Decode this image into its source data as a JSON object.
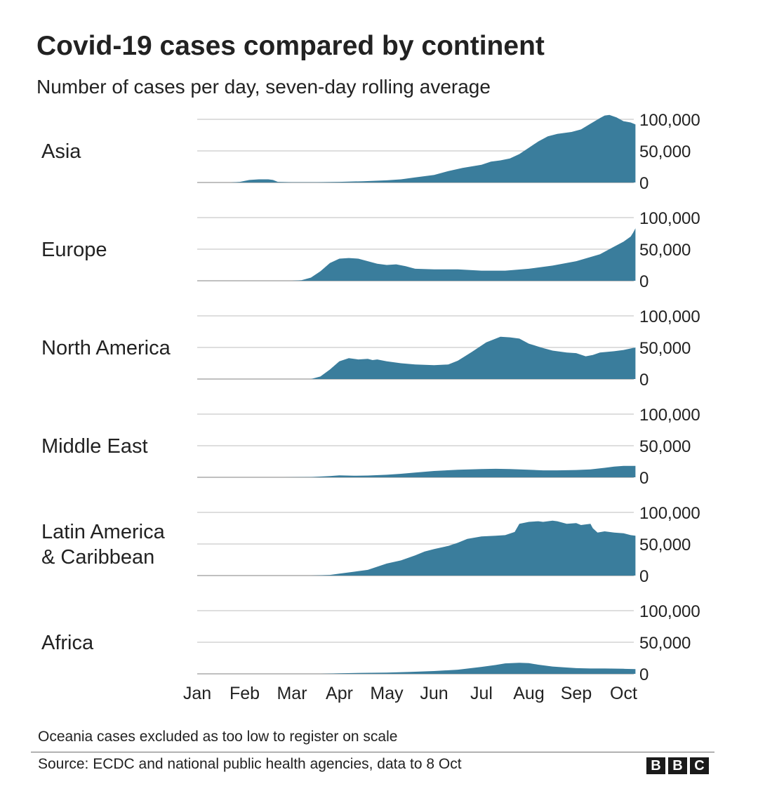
{
  "chart_data": {
    "type": "area",
    "title": "Covid-19 cases compared by continent",
    "subtitle": "Number of cases per day, seven-day rolling average",
    "x_tick_labels": [
      "Jan",
      "Feb",
      "Mar",
      "Apr",
      "May",
      "Jun",
      "Jul",
      "Aug",
      "Sep",
      "Oct"
    ],
    "y_ticks": [
      0,
      50000,
      100000
    ],
    "y_tick_labels": [
      "0",
      "50,000",
      "100,000"
    ],
    "ylim": [
      0,
      100000
    ],
    "y_axis_side": "right",
    "grid": true,
    "fill_color": "#3a7d9c",
    "series": [
      {
        "name": "Asia",
        "points": [
          [
            0.7,
            0
          ],
          [
            0.9,
            1000
          ],
          [
            1.0,
            2500
          ],
          [
            1.1,
            4000
          ],
          [
            1.3,
            5000
          ],
          [
            1.5,
            5000
          ],
          [
            1.6,
            4000
          ],
          [
            1.7,
            1000
          ],
          [
            2.0,
            500
          ],
          [
            2.5,
            500
          ],
          [
            3.0,
            1000
          ],
          [
            3.5,
            2000
          ],
          [
            4.0,
            3500
          ],
          [
            4.3,
            5000
          ],
          [
            4.6,
            8000
          ],
          [
            5.0,
            12000
          ],
          [
            5.3,
            18000
          ],
          [
            5.6,
            23000
          ],
          [
            6.0,
            28000
          ],
          [
            6.2,
            33000
          ],
          [
            6.4,
            35000
          ],
          [
            6.6,
            38000
          ],
          [
            6.8,
            45000
          ],
          [
            7.0,
            55000
          ],
          [
            7.2,
            65000
          ],
          [
            7.4,
            73000
          ],
          [
            7.6,
            77000
          ],
          [
            7.9,
            80000
          ],
          [
            8.1,
            84000
          ],
          [
            8.3,
            93000
          ],
          [
            8.5,
            102000
          ],
          [
            8.6,
            106000
          ],
          [
            8.7,
            107000
          ],
          [
            8.85,
            103000
          ],
          [
            9.0,
            97000
          ],
          [
            9.15,
            95000
          ],
          [
            9.25,
            92000
          ]
        ]
      },
      {
        "name": "Europe",
        "points": [
          [
            2.0,
            0
          ],
          [
            2.2,
            800
          ],
          [
            2.4,
            5000
          ],
          [
            2.6,
            15000
          ],
          [
            2.8,
            28000
          ],
          [
            3.0,
            35000
          ],
          [
            3.2,
            36000
          ],
          [
            3.4,
            35000
          ],
          [
            3.6,
            31000
          ],
          [
            3.8,
            27000
          ],
          [
            4.0,
            25000
          ],
          [
            4.2,
            26000
          ],
          [
            4.4,
            23000
          ],
          [
            4.6,
            19000
          ],
          [
            5.0,
            18000
          ],
          [
            5.5,
            18000
          ],
          [
            6.0,
            16000
          ],
          [
            6.5,
            16000
          ],
          [
            7.0,
            19000
          ],
          [
            7.5,
            24000
          ],
          [
            8.0,
            31000
          ],
          [
            8.5,
            42000
          ],
          [
            8.8,
            54000
          ],
          [
            9.0,
            62000
          ],
          [
            9.15,
            70000
          ],
          [
            9.2,
            76000
          ],
          [
            9.25,
            83000
          ]
        ]
      },
      {
        "name": "North America",
        "points": [
          [
            2.4,
            0
          ],
          [
            2.6,
            4000
          ],
          [
            2.8,
            15000
          ],
          [
            3.0,
            28000
          ],
          [
            3.2,
            33000
          ],
          [
            3.4,
            31000
          ],
          [
            3.6,
            32000
          ],
          [
            3.7,
            30000
          ],
          [
            3.8,
            31000
          ],
          [
            4.0,
            28000
          ],
          [
            4.3,
            25000
          ],
          [
            4.6,
            23000
          ],
          [
            5.0,
            22000
          ],
          [
            5.3,
            23000
          ],
          [
            5.5,
            29000
          ],
          [
            5.8,
            43000
          ],
          [
            6.1,
            58000
          ],
          [
            6.4,
            67000
          ],
          [
            6.6,
            66000
          ],
          [
            6.8,
            64000
          ],
          [
            7.0,
            56000
          ],
          [
            7.3,
            49000
          ],
          [
            7.5,
            45000
          ],
          [
            7.8,
            42000
          ],
          [
            8.0,
            41000
          ],
          [
            8.2,
            36000
          ],
          [
            8.35,
            38000
          ],
          [
            8.5,
            42000
          ],
          [
            8.8,
            44000
          ],
          [
            9.0,
            46000
          ],
          [
            9.25,
            50000
          ]
        ]
      },
      {
        "name": "Middle East",
        "points": [
          [
            1.8,
            0
          ],
          [
            2.4,
            400
          ],
          [
            2.8,
            2000
          ],
          [
            3.0,
            3000
          ],
          [
            3.3,
            2500
          ],
          [
            3.6,
            2800
          ],
          [
            4.0,
            4000
          ],
          [
            4.3,
            5500
          ],
          [
            4.6,
            7500
          ],
          [
            5.0,
            10000
          ],
          [
            5.5,
            12000
          ],
          [
            6.0,
            13000
          ],
          [
            6.3,
            13500
          ],
          [
            6.6,
            13000
          ],
          [
            7.0,
            12000
          ],
          [
            7.3,
            11000
          ],
          [
            7.6,
            11000
          ],
          [
            8.0,
            11500
          ],
          [
            8.3,
            12500
          ],
          [
            8.6,
            15000
          ],
          [
            8.8,
            17000
          ],
          [
            9.0,
            18000
          ],
          [
            9.25,
            18000
          ]
        ]
      },
      {
        "name": "Latin America & Caribbean",
        "points": [
          [
            2.4,
            0
          ],
          [
            2.8,
            1000
          ],
          [
            3.0,
            3000
          ],
          [
            3.3,
            6000
          ],
          [
            3.6,
            9000
          ],
          [
            3.8,
            14000
          ],
          [
            4.0,
            19000
          ],
          [
            4.3,
            24000
          ],
          [
            4.6,
            32000
          ],
          [
            4.8,
            38000
          ],
          [
            5.0,
            42000
          ],
          [
            5.3,
            47000
          ],
          [
            5.5,
            52000
          ],
          [
            5.7,
            58000
          ],
          [
            6.0,
            62000
          ],
          [
            6.3,
            63000
          ],
          [
            6.5,
            64000
          ],
          [
            6.7,
            69000
          ],
          [
            6.8,
            82000
          ],
          [
            7.0,
            85000
          ],
          [
            7.2,
            86000
          ],
          [
            7.3,
            85000
          ],
          [
            7.5,
            87000
          ],
          [
            7.6,
            86000
          ],
          [
            7.8,
            82000
          ],
          [
            8.0,
            83000
          ],
          [
            8.1,
            80000
          ],
          [
            8.2,
            81000
          ],
          [
            8.3,
            82000
          ],
          [
            8.35,
            75000
          ],
          [
            8.45,
            68000
          ],
          [
            8.6,
            70000
          ],
          [
            8.8,
            68000
          ],
          [
            9.0,
            67000
          ],
          [
            9.15,
            64000
          ],
          [
            9.25,
            63000
          ]
        ]
      },
      {
        "name": "Africa",
        "points": [
          [
            2.6,
            0
          ],
          [
            3.0,
            800
          ],
          [
            3.5,
            1500
          ],
          [
            4.0,
            2000
          ],
          [
            4.5,
            3000
          ],
          [
            5.0,
            4500
          ],
          [
            5.5,
            6500
          ],
          [
            6.0,
            11000
          ],
          [
            6.3,
            14000
          ],
          [
            6.5,
            16500
          ],
          [
            6.8,
            17500
          ],
          [
            7.0,
            17000
          ],
          [
            7.2,
            14500
          ],
          [
            7.5,
            11500
          ],
          [
            7.8,
            10000
          ],
          [
            8.0,
            9000
          ],
          [
            8.3,
            8500
          ],
          [
            8.6,
            8500
          ],
          [
            9.0,
            8000
          ],
          [
            9.25,
            7500
          ]
        ]
      }
    ]
  },
  "header": {
    "title": "Covid-19 cases compared by continent",
    "subtitle": "Number of cases per day, seven-day rolling average"
  },
  "footer": {
    "note": "Oceania cases excluded as too low to register on scale",
    "source": "Source: ECDC and national public health agencies, data to 8 Oct",
    "logo_letters": [
      "B",
      "B",
      "C"
    ]
  }
}
